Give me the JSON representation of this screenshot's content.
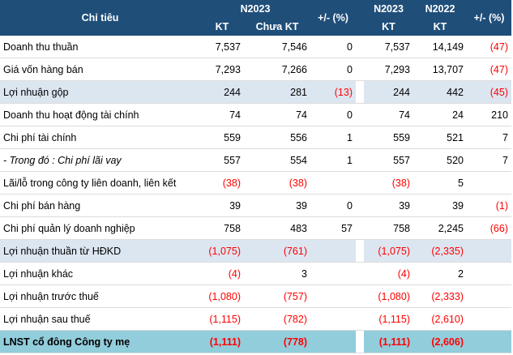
{
  "header": {
    "metric": "Chỉ tiêu",
    "group1": "N2023",
    "col_kt": "KT",
    "col_chua_kt": "Chưa KT",
    "col_change": "+/- (%)",
    "group2_a": "N2023",
    "group2_b": "N2022",
    "col_kt2": "KT",
    "col_kt3": "KT",
    "col_change2": "+/- (%)"
  },
  "rows": [
    {
      "name": "Doanh thu thuần",
      "v1": "7,537",
      "v2": "7,546",
      "v3": "0",
      "v4": "7,537",
      "v5": "14,149",
      "v6": "(47)",
      "style": ""
    },
    {
      "name": "Giá vốn hàng bán",
      "v1": "7,293",
      "v2": "7,266",
      "v3": "0",
      "v4": "7,293",
      "v5": "13,707",
      "v6": "(47)",
      "style": ""
    },
    {
      "name": "Lợi nhuận gộp",
      "v1": "244",
      "v2": "281",
      "v3": "(13)",
      "v4": "244",
      "v5": "442",
      "v6": "(45)",
      "style": "hl"
    },
    {
      "name": "Doanh thu hoạt động tài chính",
      "v1": "74",
      "v2": "74",
      "v3": "0",
      "v4": "74",
      "v5": "24",
      "v6": "210",
      "style": ""
    },
    {
      "name": "Chi phí tài chính",
      "v1": "559",
      "v2": "556",
      "v3": "1",
      "v4": "559",
      "v5": "521",
      "v6": "7",
      "style": ""
    },
    {
      "name": "- Trong đó : Chi phí lãi vay",
      "v1": "557",
      "v2": "554",
      "v3": "1",
      "v4": "557",
      "v5": "520",
      "v6": "7",
      "style": "italic"
    },
    {
      "name": "Lãi/lỗ trong công ty liên doanh, liên kết",
      "v1": "(38)",
      "v2": "(38)",
      "v3": "",
      "v4": "(38)",
      "v5": "5",
      "v6": "",
      "style": ""
    },
    {
      "name": "Chi phí bán hàng",
      "v1": "39",
      "v2": "39",
      "v3": "0",
      "v4": "39",
      "v5": "39",
      "v6": "(1)",
      "style": ""
    },
    {
      "name": "Chi phí quản lý doanh nghiệp",
      "v1": "758",
      "v2": "483",
      "v3": "57",
      "v4": "758",
      "v5": "2,245",
      "v6": "(66)",
      "style": ""
    },
    {
      "name": "Lợi nhuận thuần từ HĐKD",
      "v1": "(1,075)",
      "v2": "(761)",
      "v3": "",
      "v4": "(1,075)",
      "v5": "(2,335)",
      "v6": "",
      "style": "hl"
    },
    {
      "name": "Lợi nhuận khác",
      "v1": "(4)",
      "v2": "3",
      "v3": "",
      "v4": "(4)",
      "v5": "2",
      "v6": "",
      "style": ""
    },
    {
      "name": "Lợi nhuận trước thuế",
      "v1": "(1,080)",
      "v2": "(757)",
      "v3": "",
      "v4": "(1,080)",
      "v5": "(2,333)",
      "v6": "",
      "style": ""
    },
    {
      "name": "Lợi nhuận sau thuế",
      "v1": "(1,115)",
      "v2": "(782)",
      "v3": "",
      "v4": "(1,115)",
      "v5": "(2,610)",
      "v6": "",
      "style": ""
    },
    {
      "name": "LNST cổ đông Công ty mẹ",
      "v1": "(1,111)",
      "v2": "(778)",
      "v3": "",
      "v4": "(1,111)",
      "v5": "(2,606)",
      "v6": "",
      "style": "total"
    }
  ]
}
